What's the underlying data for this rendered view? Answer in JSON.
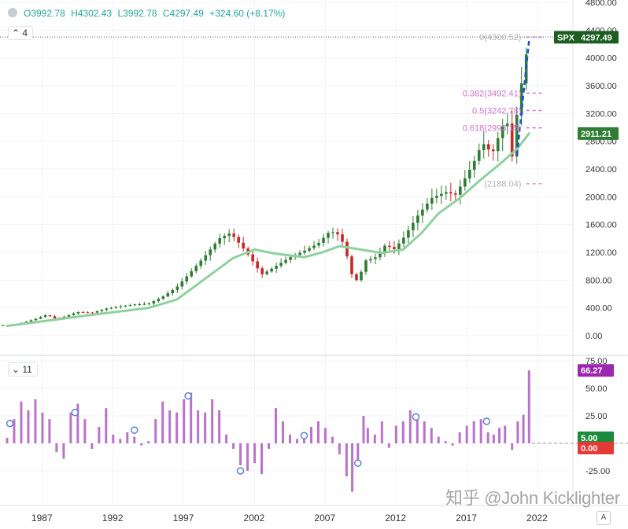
{
  "ohlc": {
    "open": "O3992.78",
    "high": "H4302.43",
    "low": "L3992.78",
    "close": "C4297.49",
    "change": "+324.60 (+8.17%)"
  },
  "main_pane": {
    "interval_label": "4"
  },
  "rsi_pane": {
    "period_label": "11"
  },
  "colors": {
    "up": "#26a69a",
    "up_candle": "#2e7d32",
    "down_candle": "#c62828",
    "ma": "#8fd19e",
    "fib": "#d070d0",
    "histogram": "#b973c8",
    "spx_tag": "#1b5e20",
    "ma_tag": "#2e7d32",
    "rsi_tag": "#9c27b0",
    "five_tag": "#1b8a3a",
    "zero_tag": "#e53935"
  },
  "watermark": "知乎 @John Kicklighter",
  "auto_button": "A",
  "chart_data": [
    {
      "type": "candlestick",
      "title": "",
      "x_ticks": [
        "1987",
        "1992",
        "1997",
        "2002",
        "2007",
        "2012",
        "2017",
        "2022"
      ],
      "y_ticks": [
        "0.00",
        "400.00",
        "800.00",
        "1200.00",
        "1600.00",
        "2000.00",
        "2400.00",
        "2800.00",
        "3200.00",
        "3600.00",
        "4000.00",
        "4400.00",
        "4800.00"
      ],
      "ylim": [
        0,
        4800
      ],
      "xlim": [
        1984.0,
        2024.5
      ],
      "grid": true,
      "last_price_label": "SPX",
      "last_price_value": "4297.49",
      "ma_value_label": "2911.21",
      "fib_levels": [
        {
          "label": "0(4300.52)",
          "value": 4300.52
        },
        {
          "label": "0.382(3492.41)",
          "value": 3492.41
        },
        {
          "label": "0.5(3242.78)",
          "value": 3242.78
        },
        {
          "label": "0.618(2993.15)",
          "value": 2993.15
        },
        {
          "label": "(2188.04)",
          "value": 2188.04
        }
      ],
      "close_series": [
        [
          1984.5,
          150
        ],
        [
          1985.5,
          180
        ],
        [
          1986.5,
          240
        ],
        [
          1987.3,
          300
        ],
        [
          1987.9,
          245
        ],
        [
          1988.5,
          270
        ],
        [
          1989.5,
          340
        ],
        [
          1990.5,
          330
        ],
        [
          1991.5,
          390
        ],
        [
          1992.5,
          420
        ],
        [
          1993.5,
          450
        ],
        [
          1994.5,
          460
        ],
        [
          1995.5,
          560
        ],
        [
          1996.5,
          700
        ],
        [
          1997.5,
          920
        ],
        [
          1998.5,
          1150
        ],
        [
          1999.5,
          1400
        ],
        [
          2000.3,
          1480
        ],
        [
          2000.9,
          1330
        ],
        [
          2001.5,
          1180
        ],
        [
          2002.5,
          880
        ],
        [
          2003.5,
          1000
        ],
        [
          2004.5,
          1130
        ],
        [
          2005.5,
          1220
        ],
        [
          2006.5,
          1330
        ],
        [
          2007.3,
          1500
        ],
        [
          2007.8,
          1480
        ],
        [
          2008.3,
          1320
        ],
        [
          2008.9,
          860
        ],
        [
          2009.3,
          780
        ],
        [
          2009.8,
          1080
        ],
        [
          2010.5,
          1120
        ],
        [
          2011.3,
          1320
        ],
        [
          2011.8,
          1230
        ],
        [
          2012.5,
          1400
        ],
        [
          2013.5,
          1720
        ],
        [
          2014.5,
          1980
        ],
        [
          2015.5,
          2070
        ],
        [
          2016.2,
          2030
        ],
        [
          2016.8,
          2240
        ],
        [
          2017.5,
          2500
        ],
        [
          2018.1,
          2780
        ],
        [
          2018.8,
          2620
        ],
        [
          2019.3,
          2900
        ],
        [
          2019.8,
          3150
        ],
        [
          2020.2,
          2580
        ],
        [
          2020.6,
          3300
        ],
        [
          2021.0,
          3800
        ],
        [
          2021.4,
          4300
        ]
      ],
      "ma_series": [
        [
          1984.5,
          140
        ],
        [
          1987.5,
          220
        ],
        [
          1990.5,
          300
        ],
        [
          1994.5,
          400
        ],
        [
          1996.5,
          520
        ],
        [
          1998.5,
          820
        ],
        [
          2000.5,
          1120
        ],
        [
          2002.0,
          1240
        ],
        [
          2003.5,
          1180
        ],
        [
          2005.5,
          1130
        ],
        [
          2006.8,
          1200
        ],
        [
          2008.0,
          1290
        ],
        [
          2009.5,
          1240
        ],
        [
          2011.0,
          1190
        ],
        [
          2012.5,
          1240
        ],
        [
          2013.8,
          1480
        ],
        [
          2015.0,
          1760
        ],
        [
          2016.5,
          1980
        ],
        [
          2018.0,
          2250
        ],
        [
          2019.5,
          2500
        ],
        [
          2020.6,
          2700
        ],
        [
          2021.4,
          2911.21
        ]
      ]
    },
    {
      "type": "bar",
      "title": "",
      "series_name": "11",
      "y_ticks": [
        "-25.00",
        "0.00",
        "25.00",
        "50.00",
        "75.00"
      ],
      "ylim": [
        -45,
        78
      ],
      "last_value_label": "66.27",
      "level_labels": [
        "5.00",
        "0.00"
      ],
      "values": [
        [
          1984.5,
          5
        ],
        [
          1985.0,
          22
        ],
        [
          1985.5,
          38
        ],
        [
          1986.0,
          30
        ],
        [
          1986.5,
          40
        ],
        [
          1987.0,
          28
        ],
        [
          1987.5,
          22
        ],
        [
          1988.0,
          -8
        ],
        [
          1988.5,
          -14
        ],
        [
          1989.0,
          28
        ],
        [
          1989.5,
          36
        ],
        [
          1990.0,
          22
        ],
        [
          1990.5,
          -5
        ],
        [
          1991.0,
          15
        ],
        [
          1991.5,
          32
        ],
        [
          1992.0,
          8
        ],
        [
          1992.5,
          4
        ],
        [
          1993.0,
          10
        ],
        [
          1993.5,
          6
        ],
        [
          1994.0,
          -2
        ],
        [
          1994.5,
          2
        ],
        [
          1995.0,
          22
        ],
        [
          1995.5,
          38
        ],
        [
          1996.0,
          30
        ],
        [
          1996.5,
          28
        ],
        [
          1997.0,
          40
        ],
        [
          1997.5,
          46
        ],
        [
          1998.0,
          30
        ],
        [
          1998.5,
          28
        ],
        [
          1999.0,
          40
        ],
        [
          1999.5,
          30
        ],
        [
          2000.0,
          8
        ],
        [
          2000.5,
          -5
        ],
        [
          2001.0,
          -20
        ],
        [
          2001.5,
          -25
        ],
        [
          2002.0,
          -18
        ],
        [
          2002.5,
          -28
        ],
        [
          2003.0,
          -5
        ],
        [
          2003.5,
          32
        ],
        [
          2004.0,
          20
        ],
        [
          2004.5,
          8
        ],
        [
          2005.0,
          4
        ],
        [
          2005.5,
          10
        ],
        [
          2006.0,
          15
        ],
        [
          2006.5,
          20
        ],
        [
          2007.0,
          14
        ],
        [
          2007.5,
          6
        ],
        [
          2008.0,
          -10
        ],
        [
          2008.5,
          -30
        ],
        [
          2008.9,
          -44
        ],
        [
          2009.3,
          -20
        ],
        [
          2009.7,
          25
        ],
        [
          2010.0,
          14
        ],
        [
          2010.5,
          8
        ],
        [
          2011.0,
          20
        ],
        [
          2011.5,
          -4
        ],
        [
          2012.0,
          16
        ],
        [
          2012.5,
          20
        ],
        [
          2013.0,
          30
        ],
        [
          2013.5,
          26
        ],
        [
          2014.0,
          20
        ],
        [
          2014.5,
          14
        ],
        [
          2015.0,
          6
        ],
        [
          2015.5,
          2
        ],
        [
          2016.0,
          -2
        ],
        [
          2016.5,
          10
        ],
        [
          2017.0,
          16
        ],
        [
          2017.5,
          20
        ],
        [
          2018.0,
          22
        ],
        [
          2018.5,
          10
        ],
        [
          2018.9,
          8
        ],
        [
          2019.3,
          14
        ],
        [
          2019.7,
          16
        ],
        [
          2020.2,
          -6
        ],
        [
          2020.6,
          20
        ],
        [
          2021.0,
          26
        ],
        [
          2021.4,
          66.27
        ]
      ],
      "circle_markers": [
        [
          1984.7,
          18
        ],
        [
          1989.3,
          28
        ],
        [
          1993.5,
          12
        ],
        [
          1997.3,
          43
        ],
        [
          2001.0,
          -25
        ],
        [
          2005.5,
          7
        ],
        [
          2009.3,
          -18
        ],
        [
          2013.4,
          24
        ],
        [
          2018.4,
          20
        ]
      ]
    }
  ]
}
